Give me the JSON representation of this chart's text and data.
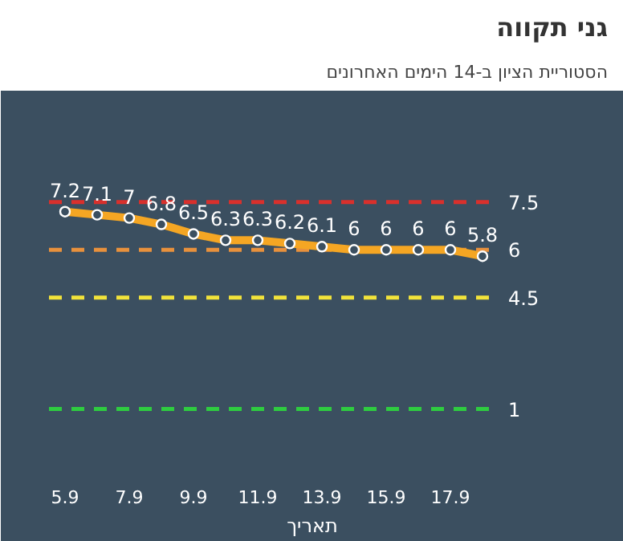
{
  "chart_data": {
    "type": "line",
    "title": "גני תקווה",
    "subtitle": "הסטוריית הציון ב-14 הימים האחרונים",
    "xlabel": "תאריך",
    "categories": [
      "5.9",
      null,
      "7.9",
      null,
      "9.9",
      null,
      "11.9",
      null,
      "13.9",
      null,
      "15.9",
      null,
      "17.9",
      null
    ],
    "series": [
      {
        "color": "#f5a623",
        "values": [
          7.2,
          7.1,
          7,
          6.8,
          6.5,
          6.3,
          6.3,
          6.2,
          6.1,
          6,
          6,
          6,
          6,
          5.8
        ]
      }
    ],
    "ylim": [
      -0.5,
      11
    ],
    "data_labels": true,
    "marker": "circle",
    "line_style": "solid",
    "grid": false,
    "ref_lines": [
      {
        "axis": "y",
        "value": 7.5,
        "label": "7.5",
        "color": "#d9302c",
        "line_style": "dashed"
      },
      {
        "axis": "y",
        "value": 6,
        "label": "6",
        "color": "#e8913c",
        "line_style": "dashed"
      },
      {
        "axis": "y",
        "value": 4.5,
        "label": "4.5",
        "color": "#f2e33a",
        "line_style": "dashed"
      },
      {
        "axis": "y",
        "value": 1,
        "label": "1",
        "color": "#2ecc40",
        "line_style": "dashed"
      }
    ]
  }
}
